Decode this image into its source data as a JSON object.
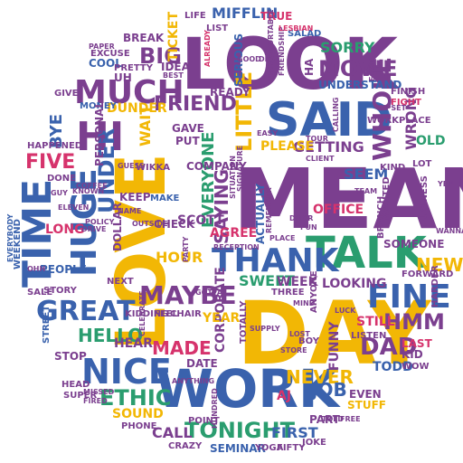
{
  "palette": {
    "purple": "#7b3f8f",
    "yellow": "#f2b705",
    "blue": "#3a62ad",
    "green": "#2a9d6f",
    "pink": "#d6336c"
  },
  "shape": "circle",
  "words": [
    {
      "text": "MEAN",
      "color": "purple"
    },
    {
      "text": "LOOK",
      "color": "purple"
    },
    {
      "text": "LOVE",
      "color": "yellow"
    },
    {
      "text": "DAY",
      "color": "yellow"
    },
    {
      "text": "WORK",
      "color": "blue"
    },
    {
      "text": "SAID",
      "color": "blue"
    },
    {
      "text": "TALK",
      "color": "green"
    },
    {
      "text": "TIME",
      "color": "blue"
    },
    {
      "text": "HUGE",
      "color": "blue"
    },
    {
      "text": "THANK",
      "color": "blue"
    },
    {
      "text": "FINE",
      "color": "blue"
    },
    {
      "text": "GREAT",
      "color": "blue"
    },
    {
      "text": "NICE",
      "color": "blue"
    },
    {
      "text": "MUCH",
      "color": "purple"
    },
    {
      "text": "MOVIE",
      "color": "purple"
    },
    {
      "text": "WHOLE",
      "color": "purple"
    },
    {
      "text": "MAYBE",
      "color": "purple"
    },
    {
      "text": "LITTLE",
      "color": "yellow"
    },
    {
      "text": "HMM",
      "color": "purple"
    },
    {
      "text": "TONIGHT",
      "color": "green"
    },
    {
      "text": "ETHIC",
      "color": "green"
    },
    {
      "text": "HI",
      "color": "purple"
    },
    {
      "text": "FRIEND",
      "color": "purple"
    },
    {
      "text": "SORRY",
      "color": "green"
    },
    {
      "text": "LOOKING",
      "color": "purple"
    },
    {
      "text": "EVERYONE",
      "color": "green"
    },
    {
      "text": "SAYING",
      "color": "purple"
    },
    {
      "text": "UNDER",
      "color": "blue"
    },
    {
      "text": "DAD",
      "color": "purple"
    },
    {
      "text": "NEVER",
      "color": "yellow"
    },
    {
      "text": "HELLO",
      "color": "green"
    },
    {
      "text": "JOB",
      "color": "blue"
    },
    {
      "text": "NEW",
      "color": "yellow"
    },
    {
      "text": "MADE",
      "color": "pink"
    },
    {
      "text": "GETTING",
      "color": "purple"
    },
    {
      "text": "FIVE",
      "color": "pink"
    },
    {
      "text": "HOUR",
      "color": "yellow"
    },
    {
      "text": "SCOTT",
      "color": "purple"
    },
    {
      "text": "OFFICE",
      "color": "pink"
    },
    {
      "text": "BIG",
      "color": "purple"
    },
    {
      "text": "PLEASE",
      "color": "yellow"
    },
    {
      "text": "MIFFLIN",
      "color": "blue"
    },
    {
      "text": "DUNDER",
      "color": "yellow"
    },
    {
      "text": "BYE",
      "color": "blue"
    },
    {
      "text": "LONG",
      "color": "pink"
    },
    {
      "text": "WRONG",
      "color": "purple"
    },
    {
      "text": "SEEM",
      "color": "blue"
    },
    {
      "text": "AGREE",
      "color": "pink"
    },
    {
      "text": "SWEET",
      "color": "green"
    },
    {
      "text": "WEEK",
      "color": "purple"
    },
    {
      "text": "CALL",
      "color": "purple"
    },
    {
      "text": "SOUND",
      "color": "yellow"
    },
    {
      "text": "SEMINAR",
      "color": "blue"
    },
    {
      "text": "FIRST",
      "color": "blue"
    },
    {
      "text": "TODD",
      "color": "blue"
    },
    {
      "text": "COMPANY",
      "color": "purple"
    },
    {
      "text": "ACTUALLY",
      "color": "blue"
    },
    {
      "text": "CORPORATE",
      "color": "purple"
    },
    {
      "text": "HEAR",
      "color": "purple"
    },
    {
      "text": "FUNNY",
      "color": "purple"
    },
    {
      "text": "PEOPLE",
      "color": "blue"
    },
    {
      "text": "TICKET",
      "color": "yellow"
    },
    {
      "text": "MONEY",
      "color": "blue"
    },
    {
      "text": "BREAK",
      "color": "purple"
    },
    {
      "text": "COOL",
      "color": "blue"
    },
    {
      "text": "IDEA",
      "color": "purple"
    },
    {
      "text": "SOMEONE",
      "color": "purple"
    },
    {
      "text": "STILL",
      "color": "pink"
    },
    {
      "text": "HARDER",
      "color": "purple"
    },
    {
      "text": "PART",
      "color": "purple"
    },
    {
      "text": "AJ",
      "color": "pink"
    },
    {
      "text": "STUFF",
      "color": "yellow"
    },
    {
      "text": "EVEN",
      "color": "purple"
    },
    {
      "text": "YEAR",
      "color": "yellow"
    },
    {
      "text": "PERSONAL",
      "color": "purple"
    },
    {
      "text": "SALAD",
      "color": "blue"
    },
    {
      "text": "UNDERSTAND",
      "color": "blue"
    },
    {
      "text": "READY",
      "color": "purple"
    },
    {
      "text": "PRETTY",
      "color": "purple"
    },
    {
      "text": "KEEP",
      "color": "purple"
    },
    {
      "text": "MAKE",
      "color": "blue"
    },
    {
      "text": "CHECK",
      "color": "purple"
    },
    {
      "text": "DOLLAR",
      "color": "purple"
    },
    {
      "text": "GAVE",
      "color": "purple"
    },
    {
      "text": "PUT",
      "color": "purple"
    },
    {
      "text": "TRUE",
      "color": "pink"
    },
    {
      "text": "LIFE",
      "color": "purple"
    },
    {
      "text": "STOP",
      "color": "purple"
    },
    {
      "text": "HEAD",
      "color": "purple"
    },
    {
      "text": "PHONE",
      "color": "purple"
    },
    {
      "text": "CHAIR",
      "color": "purple"
    },
    {
      "text": "YOGA",
      "color": "purple"
    },
    {
      "text": "FIFTY",
      "color": "purple"
    },
    {
      "text": "JOKE",
      "color": "purple"
    },
    {
      "text": "CRAZY",
      "color": "purple"
    },
    {
      "text": "WORKPLACE",
      "color": "purple"
    },
    {
      "text": "OLD",
      "color": "green"
    },
    {
      "text": "KID",
      "color": "purple"
    },
    {
      "text": "LAST",
      "color": "pink"
    },
    {
      "text": "WOW",
      "color": "purple"
    },
    {
      "text": "LISTEN",
      "color": "purple"
    },
    {
      "text": "GIVE",
      "color": "purple"
    },
    {
      "text": "HAPPENED",
      "color": "purple"
    },
    {
      "text": "DONE",
      "color": "purple"
    },
    {
      "text": "STORY",
      "color": "purple"
    },
    {
      "text": "SALE",
      "color": "purple"
    },
    {
      "text": "WEEKEND",
      "color": "blue"
    },
    {
      "text": "STREET",
      "color": "blue"
    },
    {
      "text": "SUPER",
      "color": "purple"
    },
    {
      "text": "KIDDING",
      "color": "purple"
    },
    {
      "text": "FEEL",
      "color": "purple"
    },
    {
      "text": "DATE",
      "color": "purple"
    },
    {
      "text": "POINT",
      "color": "purple"
    },
    {
      "text": "FINISH",
      "color": "purple"
    },
    {
      "text": "FIGHT",
      "color": "pink"
    },
    {
      "text": "BUSINESS",
      "color": "purple"
    },
    {
      "text": "FORWARD",
      "color": "purple"
    },
    {
      "text": "EXCUSE",
      "color": "purple"
    },
    {
      "text": "THREE",
      "color": "purple"
    },
    {
      "text": "BRANCH",
      "color": "purple"
    },
    {
      "text": "ANYONE",
      "color": "purple"
    },
    {
      "text": "SERIOUS",
      "color": "blue"
    },
    {
      "text": "UNCOMFORTABLE",
      "color": "purple"
    },
    {
      "text": "FRIENDSHIP",
      "color": "purple"
    },
    {
      "text": "LESBIAN",
      "color": "pink"
    },
    {
      "text": "LIST",
      "color": "purple"
    },
    {
      "text": "UH",
      "color": "purple"
    },
    {
      "text": "TOTALLY",
      "color": "purple"
    },
    {
      "text": "OUTSIDE",
      "color": "purple"
    },
    {
      "text": "WAIT",
      "color": "yellow"
    },
    {
      "text": "WANTED",
      "color": "purple"
    },
    {
      "text": "REMEMBER",
      "color": "purple"
    },
    {
      "text": "ALREADY",
      "color": "pink"
    },
    {
      "text": "NEXT",
      "color": "purple"
    },
    {
      "text": "PARTY",
      "color": "purple"
    },
    {
      "text": "ANYTHING",
      "color": "purple"
    },
    {
      "text": "BOY",
      "color": "purple"
    },
    {
      "text": "LUCK",
      "color": "purple"
    },
    {
      "text": "POLICY",
      "color": "purple"
    },
    {
      "text": "DRIVE",
      "color": "purple"
    },
    {
      "text": "PLACE",
      "color": "purple"
    },
    {
      "text": "HA",
      "color": "purple"
    },
    {
      "text": "OHH",
      "color": "purple"
    },
    {
      "text": "NAME",
      "color": "purple"
    },
    {
      "text": "GUESS",
      "color": "purple"
    },
    {
      "text": "WIKKA",
      "color": "purple"
    },
    {
      "text": "EASY",
      "color": "purple"
    },
    {
      "text": "LOST",
      "color": "purple"
    },
    {
      "text": "WANNA",
      "color": "purple"
    },
    {
      "text": "YEP",
      "color": "purple"
    },
    {
      "text": "LOT",
      "color": "purple"
    },
    {
      "text": "KIND",
      "color": "purple"
    },
    {
      "text": "TOLD",
      "color": "purple"
    },
    {
      "text": "FREE",
      "color": "purple"
    },
    {
      "text": "HUNDRED",
      "color": "purple"
    },
    {
      "text": "BEST",
      "color": "purple"
    },
    {
      "text": "GOTTA",
      "color": "purple"
    },
    {
      "text": "MIND",
      "color": "purple"
    },
    {
      "text": "FOOD",
      "color": "purple"
    },
    {
      "text": "SUPPLY",
      "color": "purple"
    },
    {
      "text": "DOOR",
      "color": "purple"
    },
    {
      "text": "FUN",
      "color": "purple"
    },
    {
      "text": "UPSET",
      "color": "purple"
    },
    {
      "text": "GOOD",
      "color": "purple"
    },
    {
      "text": "DEAL",
      "color": "purple"
    },
    {
      "text": "CALLING",
      "color": "purple"
    },
    {
      "text": "COFFEE",
      "color": "purple"
    },
    {
      "text": "RECEPTION",
      "color": "purple"
    },
    {
      "text": "ELEVEN",
      "color": "purple"
    },
    {
      "text": "SIGNATURE",
      "color": "purple"
    },
    {
      "text": "KNOWN",
      "color": "purple"
    },
    {
      "text": "MISSED",
      "color": "purple"
    },
    {
      "text": "FIRED",
      "color": "purple"
    },
    {
      "text": "STORE",
      "color": "purple"
    },
    {
      "text": "CELEBRATE",
      "color": "purple"
    },
    {
      "text": "SITUATION",
      "color": "purple"
    },
    {
      "text": "GUY",
      "color": "purple"
    },
    {
      "text": "TOUR",
      "color": "purple"
    },
    {
      "text": "CLIENT",
      "color": "purple"
    },
    {
      "text": "TEAM",
      "color": "purple"
    },
    {
      "text": "PAPER",
      "color": "purple"
    },
    {
      "text": "EVERYBODY",
      "color": "blue"
    }
  ]
}
